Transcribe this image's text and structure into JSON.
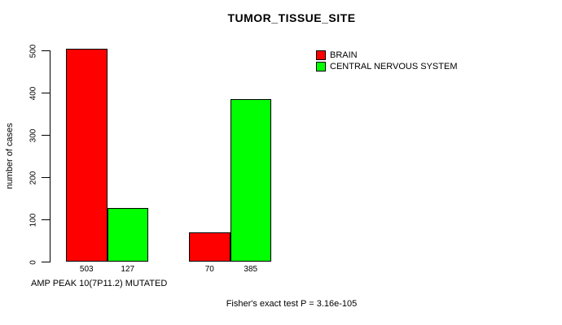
{
  "chart_data": {
    "type": "bar",
    "title": "TUMOR_TISSUE_SITE",
    "xlabel": "AMP PEAK 10(7P11.2) MUTATED",
    "ylabel": "number of cases",
    "ylim": [
      0,
      500
    ],
    "yticks": [
      0,
      100,
      200,
      300,
      400,
      500
    ],
    "grid": false,
    "legend_position": "top-right",
    "series": [
      {
        "name": "BRAIN",
        "color": "#ff0000",
        "values": [
          503,
          70
        ]
      },
      {
        "name": "CENTRAL NERVOUS SYSTEM",
        "color": "#00ff00",
        "values": [
          127,
          385
        ]
      }
    ],
    "bar_value_labels": [
      "503",
      "127",
      "70",
      "385"
    ],
    "footnote": "Fisher's exact test P = 3.16e-105"
  },
  "colors": {
    "axis": "#000000",
    "text": "#000000",
    "background": "#ffffff"
  }
}
